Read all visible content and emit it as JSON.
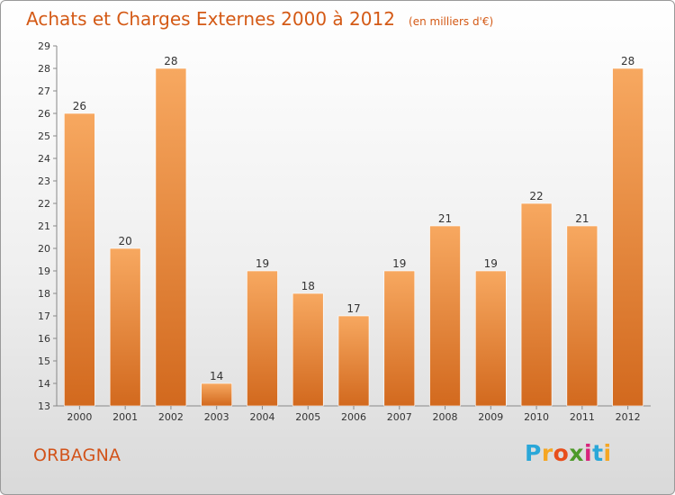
{
  "title": "Achats et Charges Externes 2000 à 2012",
  "unit": "(en milliers d'€)",
  "commune": "ORBAGNA",
  "logo": {
    "letters": [
      "P",
      "r",
      "o",
      "x",
      "i",
      "t",
      "i"
    ],
    "colors": [
      "#2aa7d8",
      "#f5a623",
      "#e84e1b",
      "#4d9a2a",
      "#d8247c",
      "#2aa7d8",
      "#f5a623"
    ]
  },
  "colors": {
    "bar_top": "#f7a860",
    "bar_bottom": "#d2691e",
    "title": "#d45a16"
  },
  "chart_data": {
    "type": "bar",
    "categories": [
      "2000",
      "2001",
      "2002",
      "2003",
      "2004",
      "2005",
      "2006",
      "2007",
      "2008",
      "2009",
      "2010",
      "2011",
      "2012"
    ],
    "values": [
      26,
      20,
      28,
      14,
      19,
      18,
      17,
      19,
      21,
      19,
      22,
      21,
      28
    ],
    "value_labels": [
      "26",
      "20",
      "28",
      "14",
      "19",
      "18",
      "17",
      "19",
      "21",
      "19",
      "22",
      "21",
      "28"
    ],
    "yticks": [
      "13",
      "14",
      "15",
      "16",
      "17",
      "18",
      "19",
      "20",
      "21",
      "22",
      "23",
      "24",
      "25",
      "26",
      "27",
      "28",
      "29"
    ],
    "ylim": [
      13,
      29
    ],
    "grid": false,
    "xlabel": "",
    "ylabel": ""
  }
}
